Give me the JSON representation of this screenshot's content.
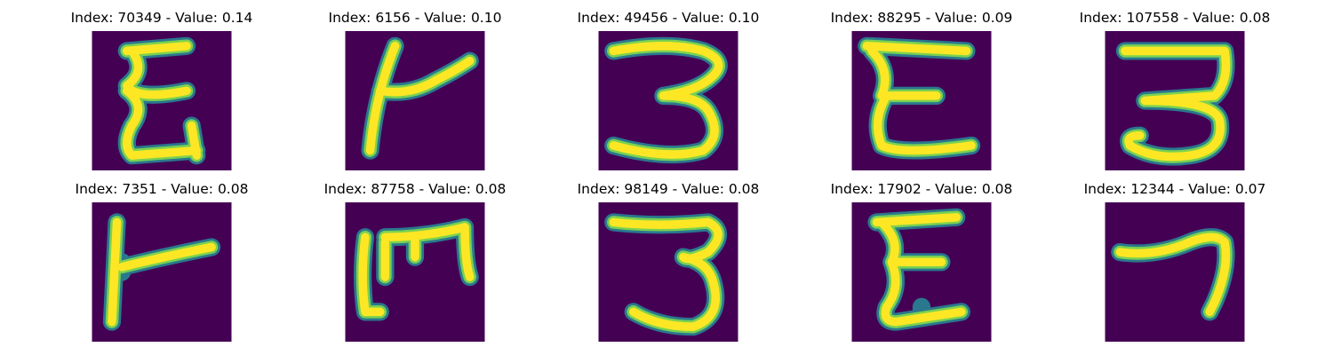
{
  "colors": {
    "background": "#440154",
    "stroke_outer": "#2a788e",
    "stroke_mid": "#7ad151",
    "stroke_core": "#fde725"
  },
  "panels": [
    {
      "title": "Index: 70349 - Value: 0.14",
      "glyph": "E-like handwritten character"
    },
    {
      "title": "Index: 6156 - Value: 0.10",
      "glyph": "T-like handwritten character"
    },
    {
      "title": "Index: 49456 - Value: 0.10",
      "glyph": "3-like handwritten character"
    },
    {
      "title": "Index: 88295 - Value: 0.09",
      "glyph": "E-like handwritten character"
    },
    {
      "title": "Index: 107558 - Value: 0.08",
      "glyph": "3-like handwritten character"
    },
    {
      "title": "Index: 7351 - Value: 0.08",
      "glyph": "T-like handwritten character"
    },
    {
      "title": "Index: 87758 - Value: 0.08",
      "glyph": "M-like handwritten character"
    },
    {
      "title": "Index: 98149 - Value: 0.08",
      "glyph": "3-like handwritten character"
    },
    {
      "title": "Index: 17902 - Value: 0.08",
      "glyph": "E-like handwritten character"
    },
    {
      "title": "Index: 12344 - Value: 0.07",
      "glyph": "7-like handwritten character"
    }
  ]
}
